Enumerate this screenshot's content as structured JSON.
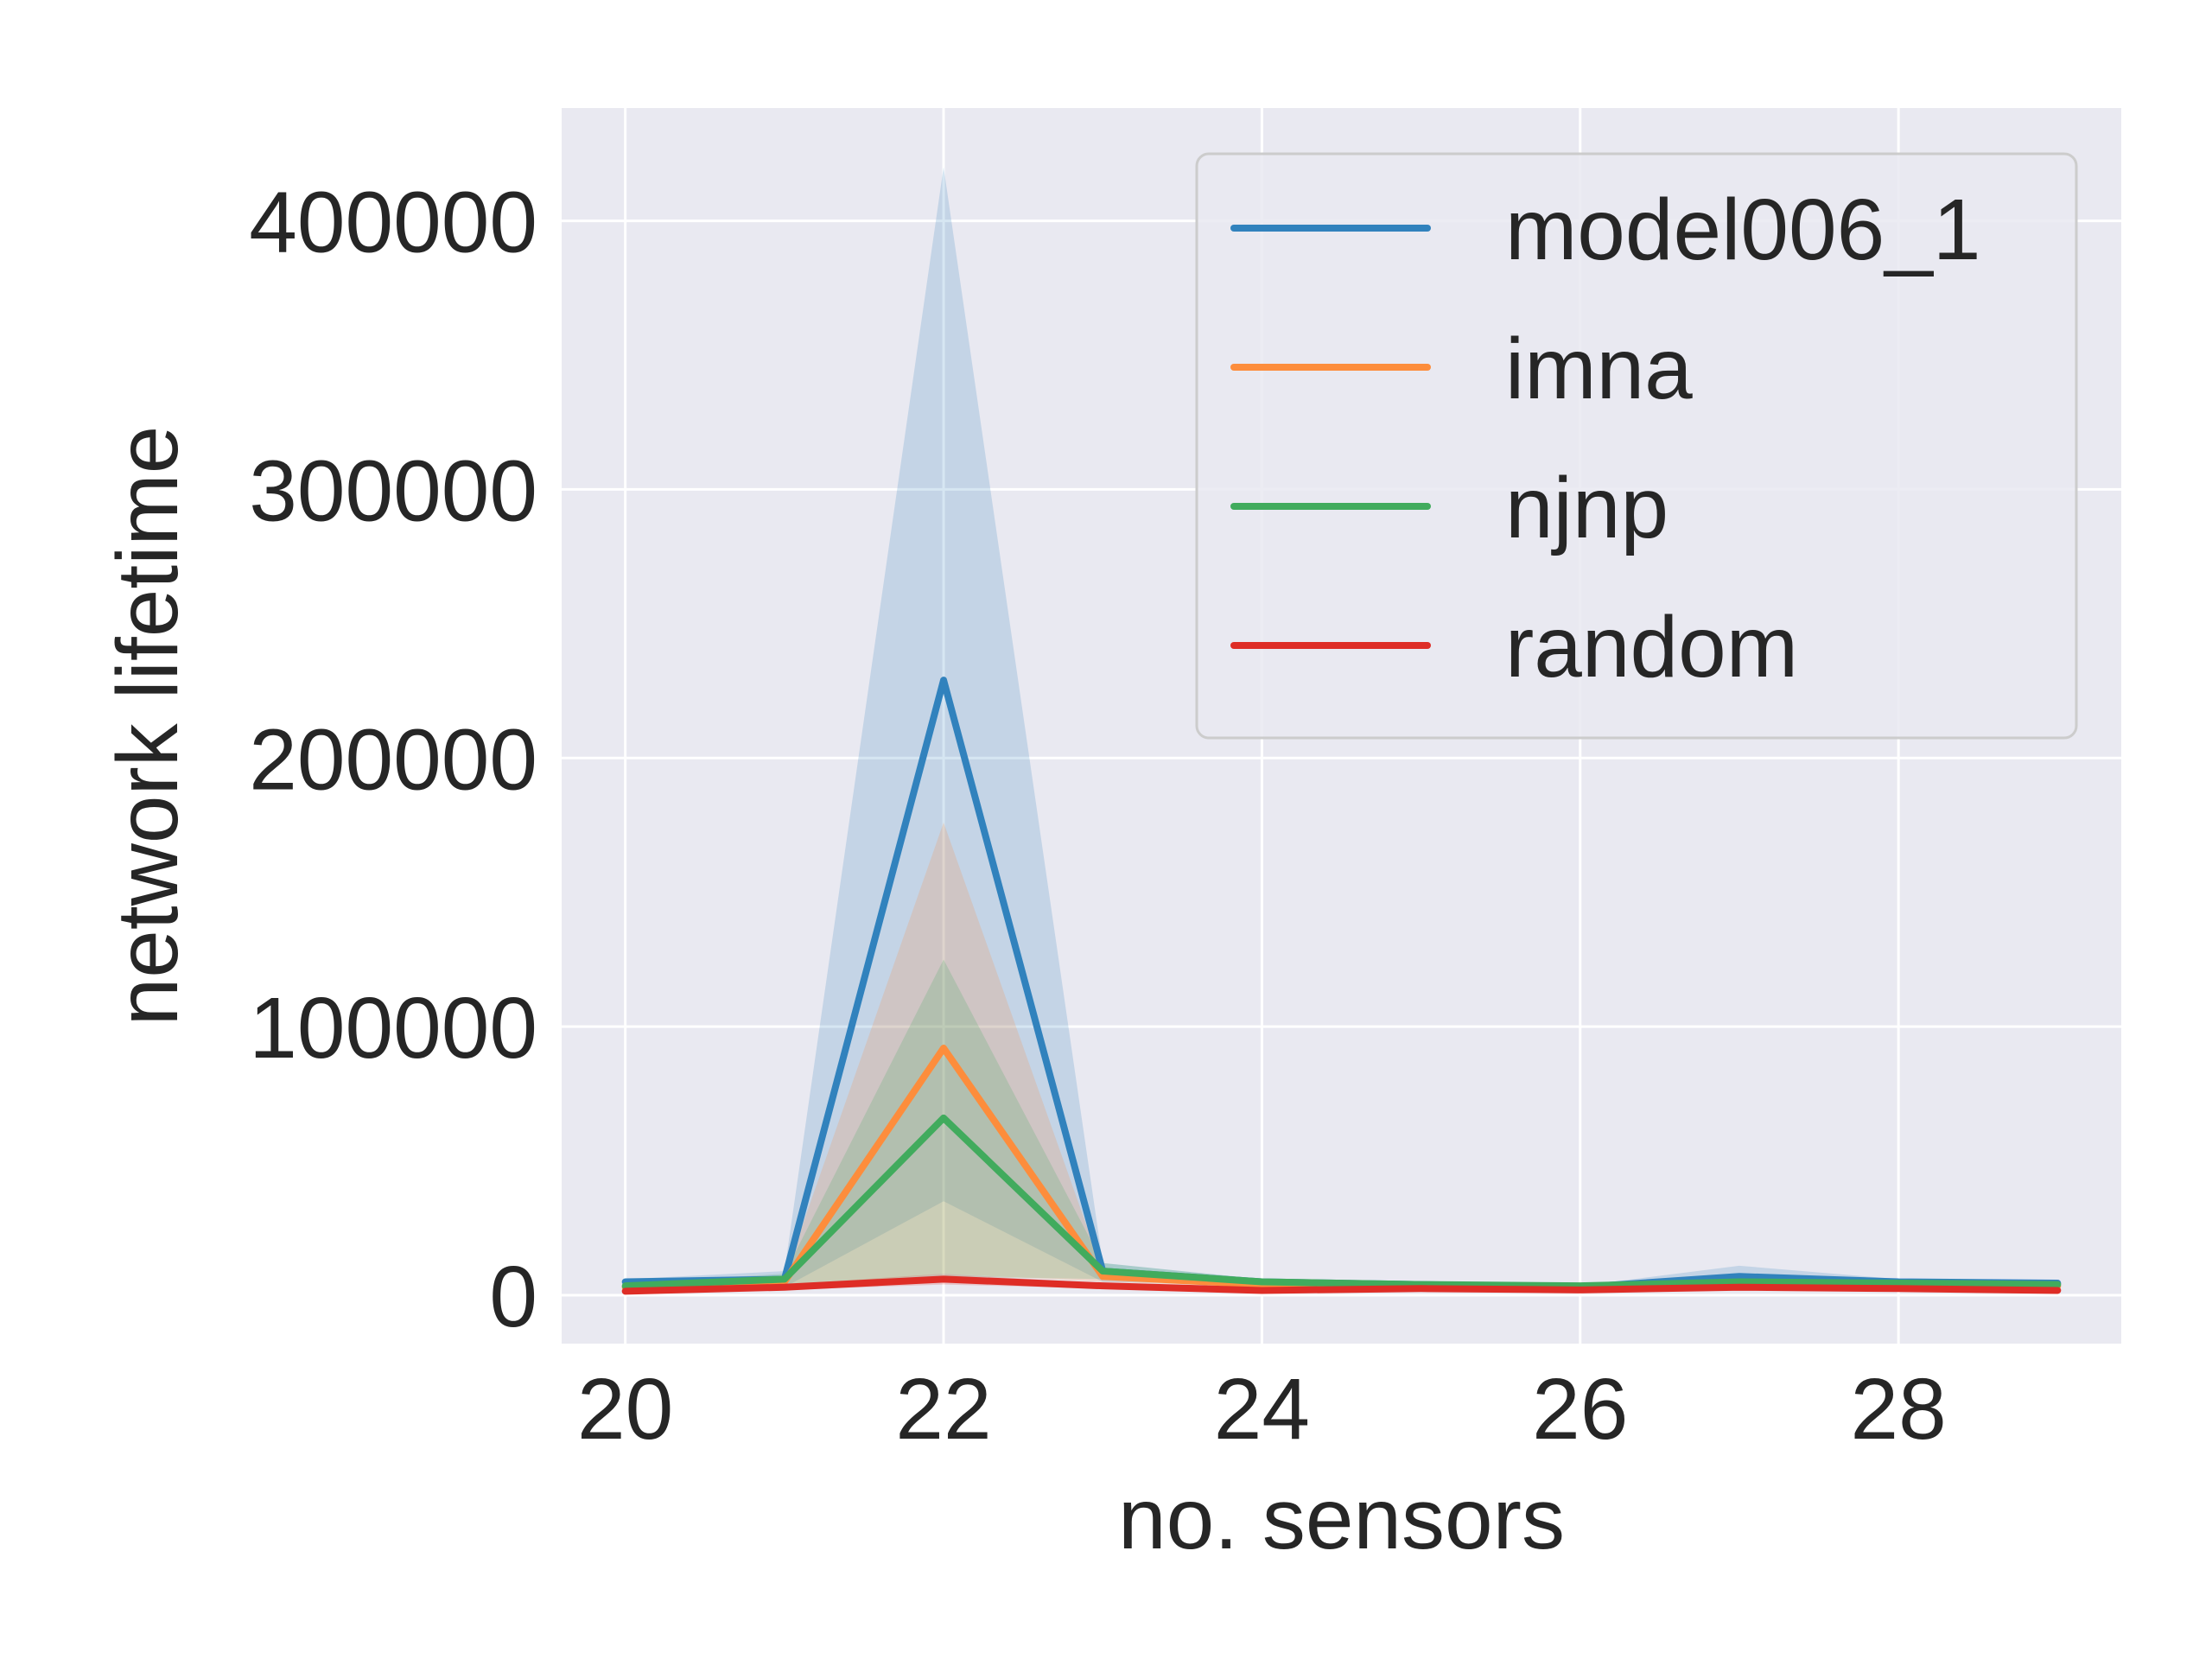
{
  "chart_data": {
    "type": "line",
    "title": "",
    "xlabel": "no. sensors",
    "ylabel": "network lifetime",
    "xlim": [
      19.6,
      29.4
    ],
    "ylim": [
      -18000,
      442000
    ],
    "x_ticks": [
      20,
      22,
      24,
      26,
      28
    ],
    "x_tick_labels": [
      "20",
      "22",
      "24",
      "26",
      "28"
    ],
    "y_ticks": [
      0,
      100000,
      200000,
      300000,
      400000
    ],
    "y_tick_labels": [
      "0",
      "100000",
      "200000",
      "300000",
      "400000"
    ],
    "grid": true,
    "legend_position": "top-right",
    "x": [
      20,
      21,
      22,
      23,
      24,
      25,
      26,
      27,
      28,
      29
    ],
    "series": [
      {
        "name": "model006_1",
        "color": "#3182bd",
        "values": [
          5000,
          6000,
          229000,
          9000,
          5000,
          4000,
          3000,
          7000,
          5000,
          4500
        ],
        "band_lower": [
          4000,
          3000,
          35000,
          5000,
          4000,
          3500,
          2500,
          4000,
          4000,
          3500
        ],
        "band_upper": [
          6000,
          9000,
          420000,
          12000,
          6000,
          4500,
          3500,
          11000,
          6000,
          5500
        ]
      },
      {
        "name": "imna",
        "color": "#fd8d3c",
        "values": [
          3000,
          5000,
          92000,
          7000,
          4000,
          3500,
          3000,
          4000,
          4000,
          3500
        ],
        "band_lower": [
          2000,
          3000,
          8000,
          5000,
          3000,
          2500,
          2000,
          3000,
          3000,
          2500
        ],
        "band_upper": [
          4000,
          7000,
          176000,
          9000,
          5000,
          4500,
          4000,
          5000,
          5000,
          4500
        ]
      },
      {
        "name": "njnp",
        "color": "#41ab5d",
        "values": [
          3500,
          6000,
          66000,
          9000,
          5000,
          4000,
          3500,
          5000,
          4500,
          4000
        ],
        "band_lower": [
          2500,
          4000,
          7000,
          6000,
          4000,
          3000,
          2500,
          4000,
          3500,
          3000
        ],
        "band_upper": [
          4500,
          8000,
          125000,
          12000,
          6000,
          5000,
          4500,
          6000,
          5500,
          5000
        ]
      },
      {
        "name": "random",
        "color": "#de2d26",
        "values": [
          1500,
          3000,
          6000,
          3500,
          1800,
          2500,
          2000,
          3000,
          2500,
          1800
        ],
        "band_lower": [
          1000,
          2000,
          4000,
          2500,
          1200,
          1800,
          1500,
          2000,
          1800,
          1200
        ],
        "band_upper": [
          2000,
          4000,
          8000,
          4500,
          2400,
          3200,
          2500,
          4000,
          3200,
          2400
        ]
      }
    ]
  }
}
